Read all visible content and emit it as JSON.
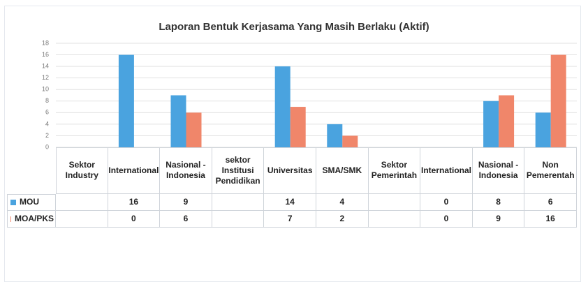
{
  "chart_data": {
    "type": "bar",
    "title": "Laporan Bentuk Kerjasama Yang Masih Berlaku (Aktif)",
    "categories": [
      "Sektor Industry",
      "International",
      "Nasional - Indonesia",
      "sektor Institusi Pendidikan",
      "Universitas",
      "SMA/SMK",
      "Sektor Pemerintah",
      "International",
      "Nasional - Indonesia",
      "Non Pemerentah"
    ],
    "series": [
      {
        "name": "MOU",
        "color": "#4aa3df",
        "values": [
          null,
          16,
          9,
          null,
          14,
          4,
          null,
          0,
          8,
          6
        ]
      },
      {
        "name": "MOA/PKS",
        "color": "#f0866a",
        "values": [
          null,
          0,
          6,
          null,
          7,
          2,
          null,
          0,
          9,
          16
        ]
      }
    ],
    "ylim": [
      0,
      18
    ],
    "yticks": [
      0,
      2,
      4,
      6,
      8,
      10,
      12,
      14,
      16,
      18
    ],
    "grid": true
  }
}
